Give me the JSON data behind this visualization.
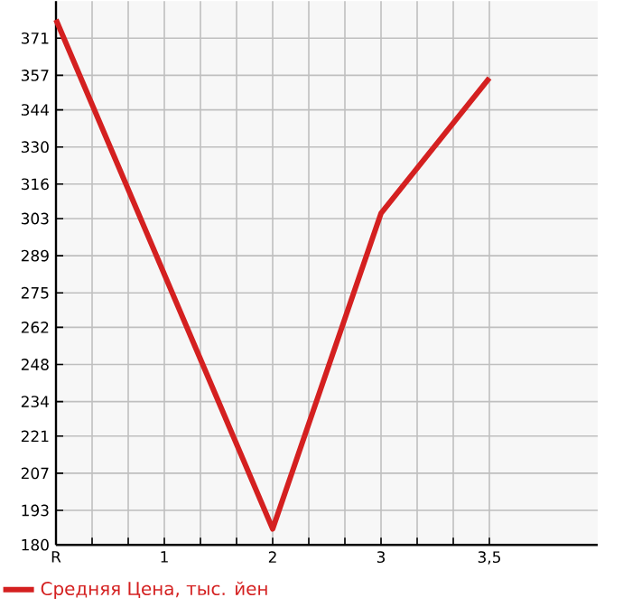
{
  "chart_data": {
    "type": "line",
    "categories": [
      "R",
      "1",
      "2",
      "3",
      "3,5"
    ],
    "series": [
      {
        "name": "Средняя Цена, тыс. йен",
        "color": "#d42020",
        "values": [
          378,
          null,
          186,
          305,
          356
        ]
      }
    ],
    "ylim": [
      180,
      385
    ],
    "yticks": [
      180,
      193,
      207,
      221,
      234,
      248,
      262,
      275,
      289,
      303,
      316,
      330,
      344,
      357,
      371
    ],
    "grid": true,
    "legend": "bottom",
    "marker": "none",
    "line_style": "solid"
  }
}
